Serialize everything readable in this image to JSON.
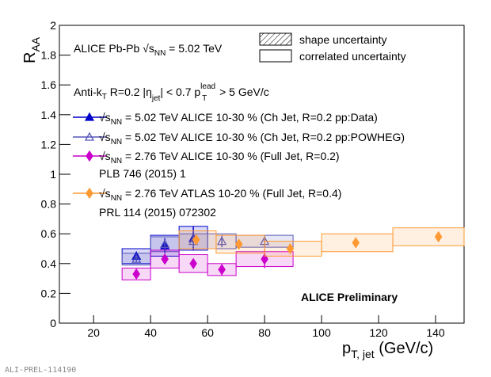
{
  "chart_data": {
    "type": "scatter",
    "system_label": [
      "ALICE Pb-Pb ",
      "√s",
      "NN",
      " = 5.02 TeV"
    ],
    "jet_label": [
      "Anti-k",
      "T",
      " R=0.2  |η",
      "jet",
      "| < 0.7  ",
      "p",
      "lead",
      "T",
      " > 5 GeV/c"
    ],
    "uncertainty_legend": [
      "shape uncertainty",
      "correlated uncertainty"
    ],
    "preliminary": "ALICE Preliminary",
    "footer": "ALI-PREL-114190",
    "x_label": [
      "p",
      "T, jet",
      " (GeV/c)"
    ],
    "y_label": [
      "R",
      "AA"
    ],
    "xlim": [
      8,
      150
    ],
    "ylim": [
      0,
      2
    ],
    "xticks": [
      20,
      40,
      60,
      80,
      100,
      120,
      140
    ],
    "yticks": [
      0,
      0.2,
      0.4,
      0.6,
      0.8,
      1,
      1.2,
      1.4,
      1.6,
      1.8,
      2
    ],
    "series": [
      {
        "name": [
          "√s",
          "NN",
          " = 5.02 TeV ALICE 10-30 % (Ch Jet, R=0.2 pp:Data)"
        ],
        "color": "#0000cc",
        "marker": "triangle",
        "filled": true,
        "x": [
          35,
          45,
          55
        ],
        "x_low": [
          30,
          40,
          50
        ],
        "x_high": [
          40,
          50,
          60
        ],
        "values": [
          0.45,
          0.52,
          0.57
        ],
        "errors": [
          0.03,
          0.05,
          0.08
        ],
        "sys": [
          0.05,
          0.07,
          0.08
        ]
      },
      {
        "name": [
          "√s",
          "NN",
          " = 5.02 TeV ALICE 10-30 % (Ch Jet, R=0.2 pp:POWHEG)"
        ],
        "color": "#5555bb",
        "marker": "triangle",
        "filled": false,
        "x": [
          35,
          45,
          55,
          65,
          80
        ],
        "x_low": [
          30,
          40,
          50,
          60,
          70
        ],
        "x_high": [
          40,
          50,
          60,
          70,
          90
        ],
        "values": [
          0.43,
          0.53,
          0.55,
          0.55,
          0.55
        ],
        "errors": [
          0.02,
          0.03,
          0.04,
          0.04,
          0.04
        ],
        "sys": [
          0.04,
          0.05,
          0.05,
          0.05,
          0.04
        ]
      },
      {
        "name": [
          "√s",
          "NN",
          " = 2.76 TeV ALICE 10-30 % (Full Jet, R=0.2)"
        ],
        "color": "#cc00cc",
        "marker": "diamond",
        "filled": true,
        "x": [
          35,
          45,
          55,
          65,
          80
        ],
        "x_low": [
          30,
          40,
          50,
          60,
          70
        ],
        "x_high": [
          40,
          50,
          60,
          70,
          90
        ],
        "values": [
          0.33,
          0.43,
          0.4,
          0.36,
          0.43
        ],
        "errors": [
          0.02,
          0.03,
          0.03,
          0.04,
          0.06
        ],
        "sys": [
          0.04,
          0.06,
          0.06,
          0.04,
          0.05
        ]
      },
      {
        "name": [
          "√s",
          "NN",
          " = 2.76 TeV ATLAS 10-20 % (Full Jet, R=0.4)"
        ],
        "color": "#ff9933",
        "marker": "diamond",
        "filled": true,
        "x": [
          56,
          71,
          89,
          112,
          141
        ],
        "x_low": [
          50,
          63,
          80,
          100,
          125
        ],
        "x_high": [
          63,
          80,
          100,
          125,
          158
        ],
        "values": [
          0.56,
          0.53,
          0.5,
          0.54,
          0.58
        ],
        "errors": [
          0.01,
          0.01,
          0.01,
          0.01,
          0.01
        ],
        "sys": [
          0.06,
          0.06,
          0.05,
          0.06,
          0.06
        ]
      }
    ],
    "references": [
      "PLB 746 (2015) 1",
      "PRL 114 (2015) 072302"
    ]
  }
}
